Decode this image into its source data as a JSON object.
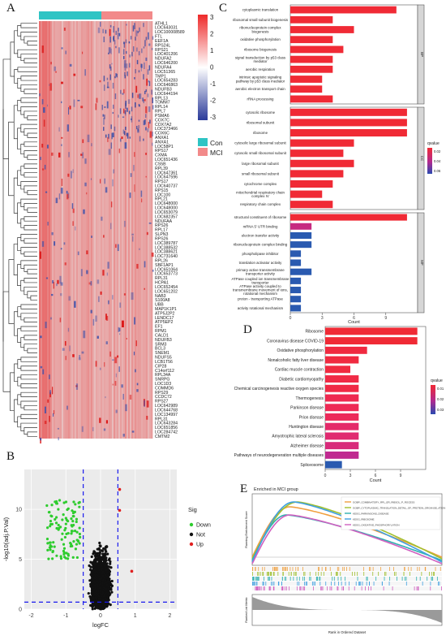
{
  "panel_labels": {
    "a": "A",
    "b": "B",
    "c": "C",
    "d": "D",
    "e": "E"
  },
  "heatmap": {
    "genes": [
      "ATHL1",
      "LOC643031",
      "LOC100008589",
      "FTL",
      "EEF1A",
      "RPS24L",
      "RPS21",
      "LOC401206",
      "NDUFA2",
      "LOC646200",
      "NDUFA4",
      "LOC51365",
      "TMP1",
      "LOC654283",
      "LOC646863",
      "NDUFB3",
      "LOC644194",
      "RPL13",
      "TOMM7",
      "RPL14",
      "RPL7",
      "PSMA6",
      "COX7C",
      "COX7A2",
      "LOC373466",
      "COX6C",
      "ANXA1",
      "ANXA1",
      "LOC58P1",
      "RPS17",
      "CXMA",
      "LOC651436",
      "CS5B",
      "RPL39",
      "LOC647361",
      "LOC647596",
      "RPS17",
      "LOC640737",
      "RPS15",
      "LOC100",
      "RPL21",
      "LOC648000",
      "LOC648000",
      "LOC653079",
      "LOC682357",
      "NDUFAA",
      "RPS26",
      "RPL17",
      "SLPN3",
      "RPS26",
      "LOC389787",
      "LOC388532",
      "LOC388621",
      "LOC731640",
      "RPL26",
      "SBF1AP1",
      "LOC651064",
      "LOC653773",
      "RPL31",
      "HCPA1",
      "LOC652454",
      "LOC651202",
      "NAB3",
      "S100A8",
      "UBB",
      "MAP1K1P1",
      "ATP5J2P2",
      "LENDC17",
      "ATP5EP2",
      "EF1",
      "RPM1",
      "CALD1",
      "NDUFB3",
      "SRM3",
      "BCL3",
      "SNEM1",
      "NDUFS5",
      "LCB1T56",
      "CIP28",
      "C14orf112",
      "RPL34A",
      "SNRPG",
      "LOC1D3",
      "COMMD6",
      "RPS29",
      "CCDC72",
      "RPS27",
      "LOC642989",
      "LOC644768",
      "LOC134997",
      "RPL31",
      "LOC643284",
      "LOC651856",
      "LOC284742",
      "CMTM2"
    ],
    "groups": [
      "Con",
      "MCI"
    ],
    "group_colors": {
      "Con": "#2ec4c4",
      "MCI": "#f28a8a"
    },
    "colorbar_ticks": [
      "3",
      "2",
      "1",
      "0",
      "-1",
      "-2",
      "-3"
    ],
    "colorbar_colors": {
      "high": "#ee2a2a",
      "mid": "#ffffff",
      "low": "#2a3a9a"
    }
  },
  "volcano": {
    "chart_data": {
      "type": "scatter",
      "xlabel": "logFC",
      "ylabel": "-log10(adj.P.Val)",
      "xlim": [
        -2.2,
        2.2
      ],
      "ylim": [
        0,
        14
      ],
      "xticks": [
        "-2",
        "-1",
        "0",
        "1",
        "2"
      ],
      "yticks": [
        "0",
        "5",
        "10"
      ],
      "thresholds": {
        "logFC": [
          -0.5,
          0.5
        ],
        "neglog10p": 0.7
      },
      "legend_title": "Sig",
      "series": [
        {
          "name": "Down",
          "color": "#2ecc2e"
        },
        {
          "name": "Not",
          "color": "#111111"
        },
        {
          "name": "Up",
          "color": "#e02020"
        }
      ],
      "up_points": [
        [
          0.9,
          3.8
        ],
        [
          0.55,
          12.0
        ],
        [
          0.55,
          9.9
        ]
      ]
    }
  },
  "go": {
    "chart_data": {
      "type": "bar",
      "xlabel": "Count",
      "xticks": [
        "0",
        "3",
        "6",
        "9"
      ],
      "xlim": [
        0,
        12
      ],
      "legend_title": "qvalue",
      "legend_ticks": [
        "0.02",
        "0.04",
        "0.06"
      ],
      "facets": [
        {
          "name": "BP",
          "bars": [
            {
              "label": "cytoplasmic translation",
              "count": 10,
              "color": "#f02a35"
            },
            {
              "label": "ribosomal small subunit biogenesis",
              "count": 4,
              "color": "#f02a35"
            },
            {
              "label": "ribonucleoprotein complex biogenesis",
              "count": 6,
              "color": "#f02a35"
            },
            {
              "label": "oxidative phosphorylation",
              "count": 4,
              "color": "#f02a35"
            },
            {
              "label": "ribosome biogenesis",
              "count": 5,
              "color": "#f02a35"
            },
            {
              "label": "signal transduction by p53 class mediator",
              "count": 4,
              "color": "#f02a35"
            },
            {
              "label": "aerobic respiration",
              "count": 4,
              "color": "#f02a35"
            },
            {
              "label": "intrinsic apoptotic signaling pathway by p53 class mediator",
              "count": 3,
              "color": "#f02a35"
            },
            {
              "label": "aerobic electron transport chain",
              "count": 3,
              "color": "#f02a35"
            },
            {
              "label": "rRNA processing",
              "count": 4,
              "color": "#f02a35"
            }
          ]
        },
        {
          "name": "CC",
          "bars": [
            {
              "label": "cytosolic ribosome",
              "count": 11,
              "color": "#f02a35"
            },
            {
              "label": "ribosomal subunit",
              "count": 11,
              "color": "#f02a35"
            },
            {
              "label": "ribosome",
              "count": 11,
              "color": "#f02a35"
            },
            {
              "label": "cytosolic large ribosomal subunit",
              "count": 6,
              "color": "#f02a35"
            },
            {
              "label": "cytosolic small ribosomal subunit",
              "count": 5,
              "color": "#f02a35"
            },
            {
              "label": "large ribosomal subunit",
              "count": 6,
              "color": "#f02a35"
            },
            {
              "label": "small ribosomal subunit",
              "count": 5,
              "color": "#f02a35"
            },
            {
              "label": "cytochrome complex",
              "count": 4,
              "color": "#f02a35"
            },
            {
              "label": "mitochondrial respiratory chain complex IV",
              "count": 3,
              "color": "#f02a35"
            },
            {
              "label": "respiratory chain complex",
              "count": 4,
              "color": "#f02a35"
            }
          ]
        },
        {
          "name": "MF",
          "bars": [
            {
              "label": "structural constituent of ribosome",
              "count": 11,
              "color": "#f02a35"
            },
            {
              "label": "mRNA 5' UTR binding",
              "count": 2,
              "color": "#c62a80"
            },
            {
              "label": "electron transfer activity",
              "count": 2,
              "color": "#2a5ab0"
            },
            {
              "label": "ribonucleoprotein complex binding",
              "count": 2,
              "color": "#2a5ab0"
            },
            {
              "label": "phospholipase inhibitor",
              "count": 1,
              "color": "#2a5ab0"
            },
            {
              "label": "translation activator activity",
              "count": 1,
              "color": "#2a5ab0"
            },
            {
              "label": "primary active transmembrane transporter activity",
              "count": 2,
              "color": "#2a5ab0"
            },
            {
              "label": "ATPase coupled ion transmembrane transporter",
              "count": 1,
              "color": "#2a5ab0"
            },
            {
              "label": "ATPase activity coupled to transmembrane movement of ions, rotational mechanism",
              "count": 1,
              "color": "#2a5ab0"
            },
            {
              "label": "proton - transporting ATPase",
              "count": 1,
              "color": "#2a5ab0"
            },
            {
              "label": "activity rotational mechanism",
              "count": 1,
              "color": "#2a5ab0"
            }
          ]
        }
      ]
    }
  },
  "kegg": {
    "chart_data": {
      "type": "bar",
      "xlabel": "Count",
      "xticks": [
        "0",
        "3",
        "6",
        "9"
      ],
      "xlim": [
        0,
        12
      ],
      "legend_title": "qvalue",
      "legend_ticks": [
        "0.01",
        "0.02",
        "0.03"
      ],
      "bars": [
        {
          "label": "Ribosome",
          "count": 11,
          "color": "#f02a35"
        },
        {
          "label": "Coronavirus disease  COVID-19",
          "count": 11,
          "color": "#f02a35"
        },
        {
          "label": "Oxidative phosphorylation",
          "count": 5,
          "color": "#f02a40"
        },
        {
          "label": "Nonalcoholic  fatty liver disease",
          "count": 4,
          "color": "#f02a40"
        },
        {
          "label": "Cardiac muscle contraction",
          "count": 3,
          "color": "#f02a40"
        },
        {
          "label": "Diabetic cardiomyopathy",
          "count": 4,
          "color": "#f02a45"
        },
        {
          "label": "Chemical carcinogenesis  reactive oxygen species",
          "count": 4,
          "color": "#f02a45"
        },
        {
          "label": "Thermogenesis",
          "count": 4,
          "color": "#ee2a50"
        },
        {
          "label": "Parkinson disease",
          "count": 4,
          "color": "#ee2a55"
        },
        {
          "label": "Prion disease",
          "count": 4,
          "color": "#ec2a5a"
        },
        {
          "label": "Huntington disease",
          "count": 4,
          "color": "#e42a6a"
        },
        {
          "label": "Amyotrophic lateral sclerosis",
          "count": 4,
          "color": "#e02a70"
        },
        {
          "label": "Alzheimer disease",
          "count": 4,
          "color": "#d82a7a"
        },
        {
          "label": "Pathways of neurodegeneration multiple diseases",
          "count": 4,
          "color": "#c02a90"
        },
        {
          "label": "Spliceosome",
          "count": 2,
          "color": "#2a5ab0"
        }
      ]
    }
  },
  "gsea": {
    "title": "Enriched in MCI group",
    "ylabel_top": "Running Enrichment Score",
    "ylabel_bottom": "Ranked List Metric",
    "xlabel": "Rank in Ordered Dataset",
    "legend": [
      {
        "name": "GOBP_COMBINATORY_RPL_ER_RIBSOL_P_ROCESS",
        "color": "#f0a040"
      },
      {
        "name": "GOBP_CYTOPLASMIC_TRANSLATION_DETAIL_OF_PROTEIN_ORGANSE_ATION",
        "color": "#a0c030"
      },
      {
        "name": "KEGG_PARKINSONS_DISEASE",
        "color": "#30b0b0"
      },
      {
        "name": "KEGG_RIBOSOME",
        "color": "#40a0e0"
      },
      {
        "name": "KEGG_OXIDATIVE_PHOSPHORYLATION",
        "color": "#d060c0"
      }
    ]
  }
}
